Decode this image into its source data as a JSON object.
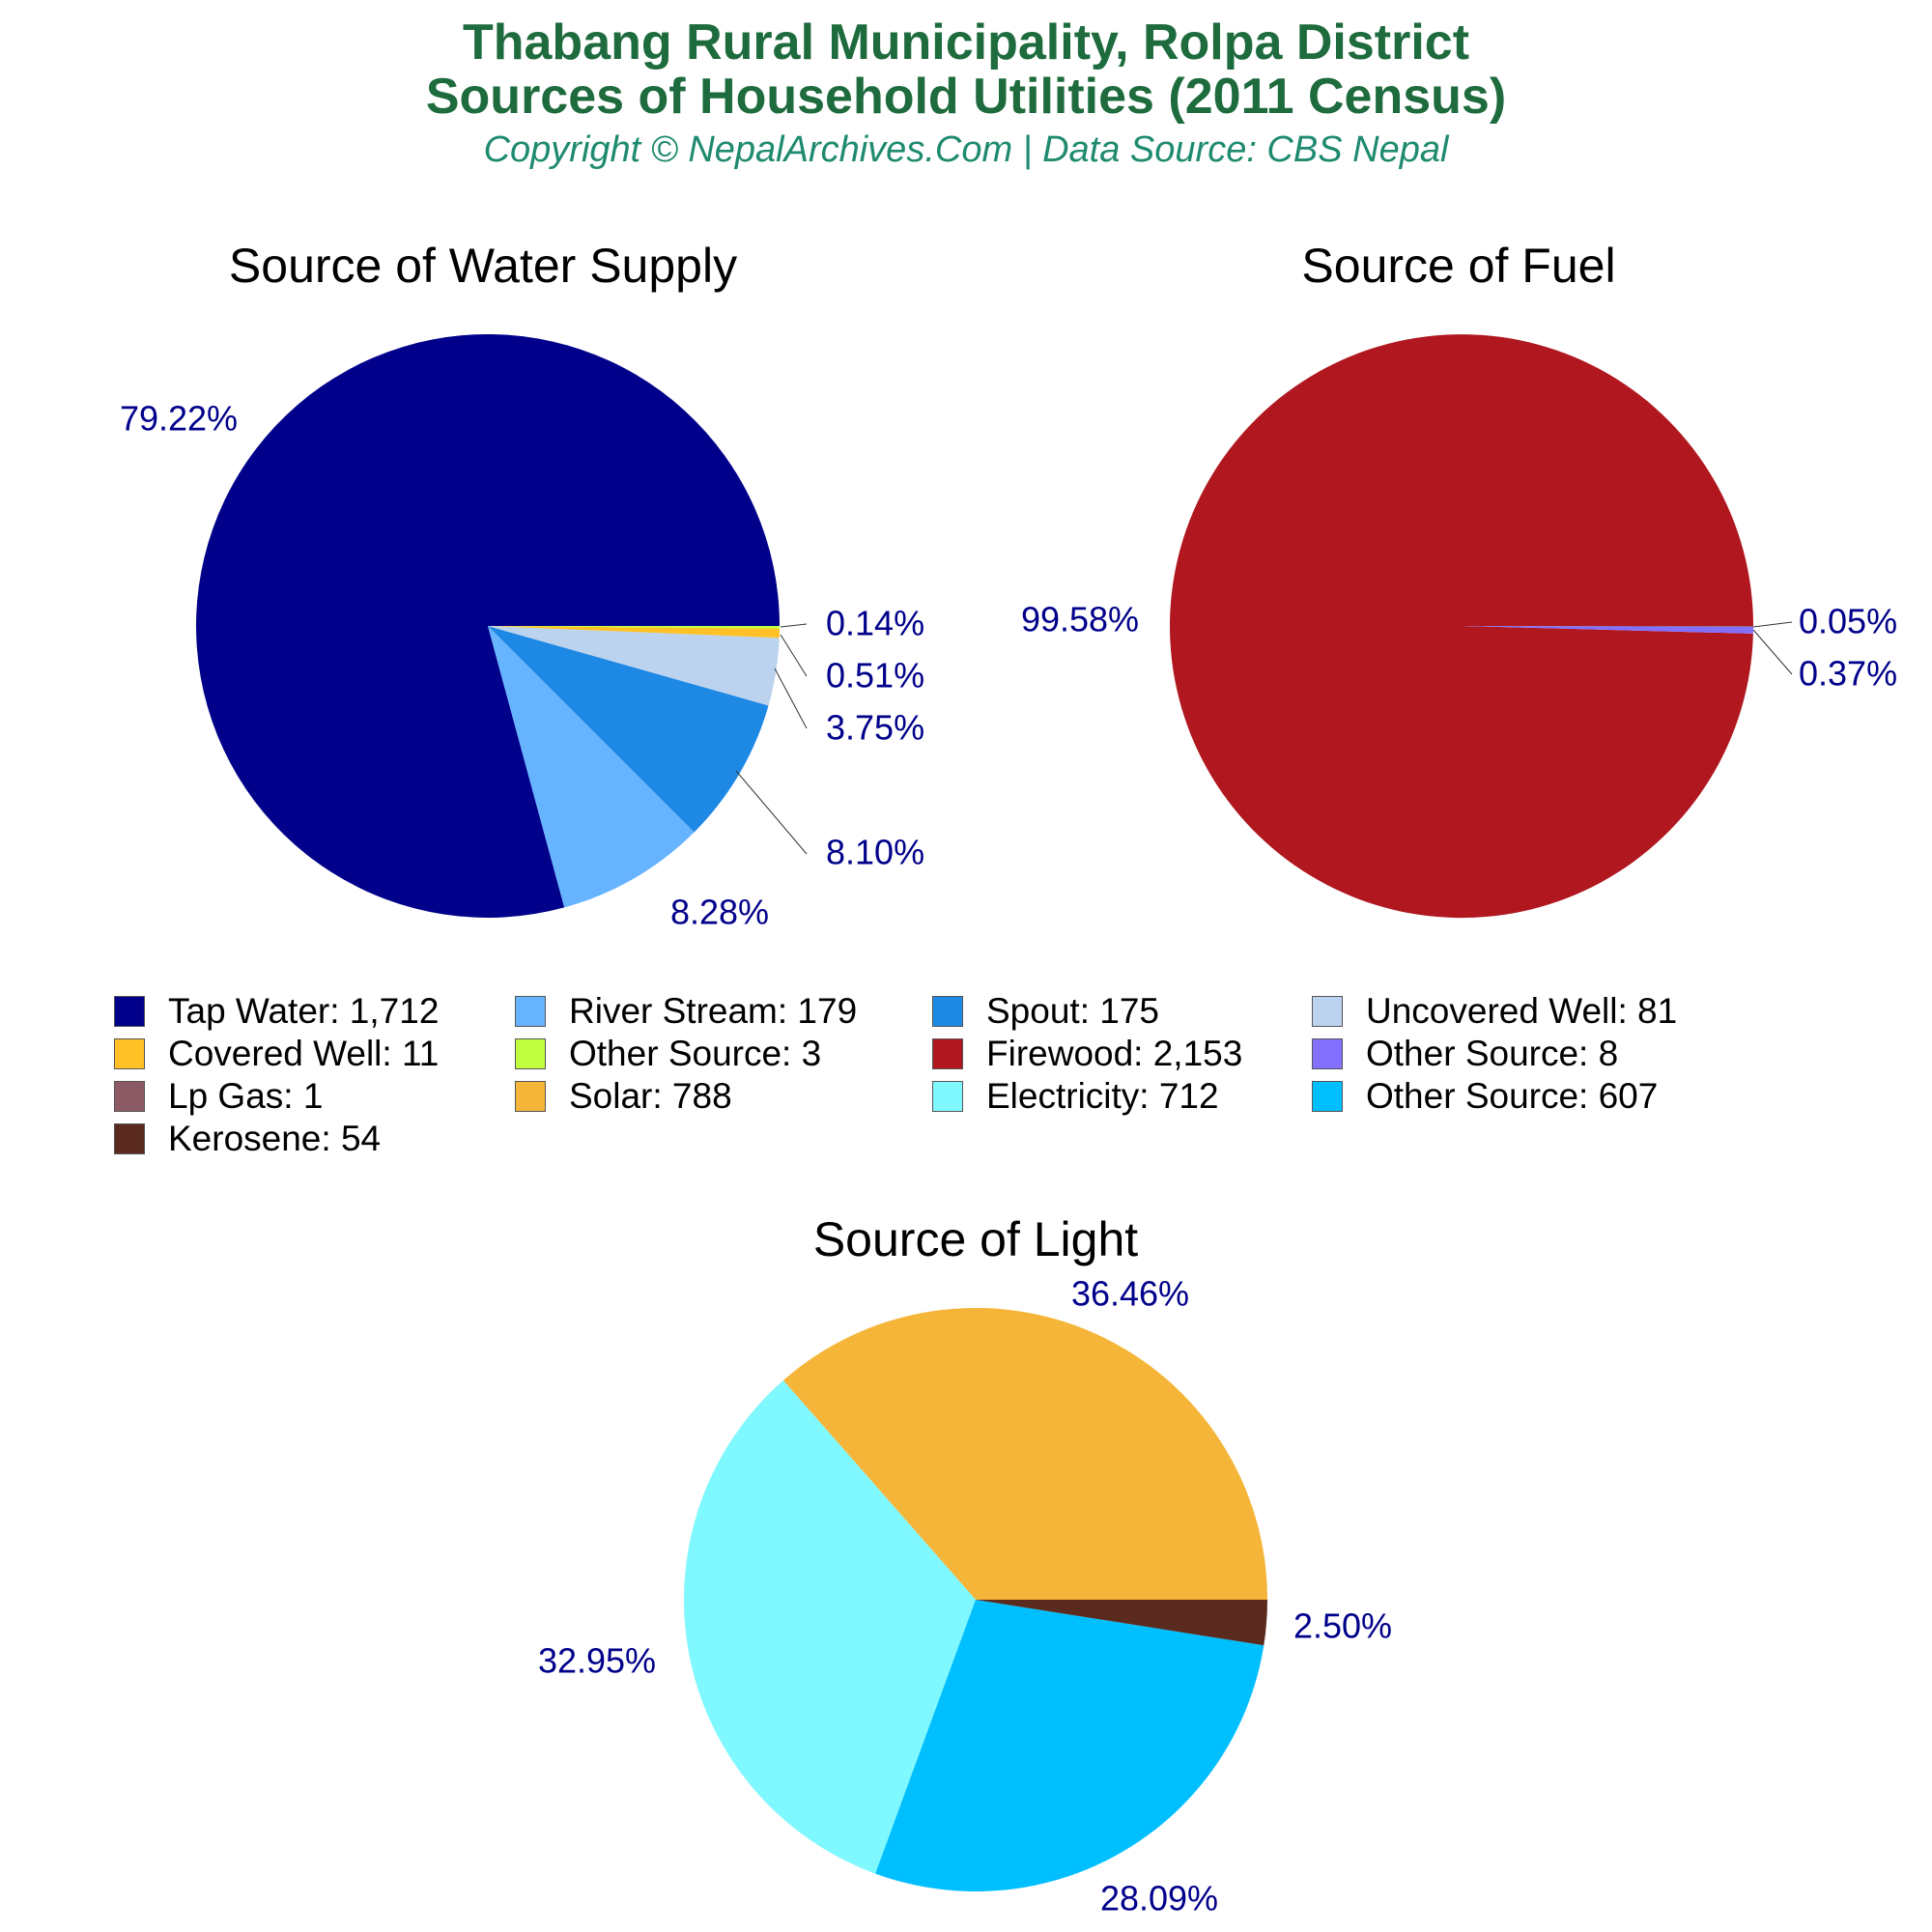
{
  "header": {
    "title_line1": "Thabang Rural Municipality, Rolpa District",
    "title_line2": "Sources of Household Utilities (2011 Census)",
    "subtitle": "Copyright © NepalArchives.Com | Data Source: CBS Nepal"
  },
  "colors": {
    "title": "#1e6b3e",
    "subtitle": "#1e8a6e",
    "pct_label": "#00008b",
    "leader_line": "#333333"
  },
  "chart_data": [
    {
      "type": "pie",
      "title": "Source of Water Supply",
      "slices": [
        {
          "label": "Tap Water",
          "value": 1712,
          "display": "1,712",
          "percent": "79.22%",
          "color": "#00008b"
        },
        {
          "label": "River Stream",
          "value": 179,
          "display": "179",
          "percent": "8.28%",
          "color": "#66b3ff"
        },
        {
          "label": "Spout",
          "value": 175,
          "display": "175",
          "percent": "8.10%",
          "color": "#1e88e5"
        },
        {
          "label": "Uncovered Well",
          "value": 81,
          "display": "81",
          "percent": "3.75%",
          "color": "#bbd3ee"
        },
        {
          "label": "Covered Well",
          "value": 11,
          "display": "11",
          "percent": "0.51%",
          "color": "#ffc125"
        },
        {
          "label": "Other Source",
          "value": 3,
          "display": "3",
          "percent": "0.14%",
          "color": "#bfff3f"
        }
      ]
    },
    {
      "type": "pie",
      "title": "Source of Fuel",
      "slices": [
        {
          "label": "Firewood",
          "value": 2153,
          "display": "2,153",
          "percent": "99.58%",
          "color": "#b0171f"
        },
        {
          "label": "Other Source",
          "value": 8,
          "display": "8",
          "percent": "0.37%",
          "color": "#8470ff"
        },
        {
          "label": "Lp Gas",
          "value": 1,
          "display": "1",
          "percent": "0.05%",
          "color": "#8b5a64"
        }
      ]
    },
    {
      "type": "pie",
      "title": "Source of Light",
      "slices": [
        {
          "label": "Solar",
          "value": 788,
          "display": "788",
          "percent": "36.46%",
          "color": "#f5b538"
        },
        {
          "label": "Electricity",
          "value": 712,
          "display": "712",
          "percent": "32.95%",
          "color": "#80f8ff"
        },
        {
          "label": "Other Source",
          "value": 607,
          "display": "607",
          "percent": "28.09%",
          "color": "#00bfff"
        },
        {
          "label": "Kerosene",
          "value": 54,
          "display": "54",
          "percent": "2.50%",
          "color": "#5a2a1e"
        }
      ]
    }
  ],
  "legend": [
    {
      "label": "Tap Water: 1,712",
      "color": "#00008b"
    },
    {
      "label": "River Stream: 179",
      "color": "#66b3ff"
    },
    {
      "label": "Spout: 175",
      "color": "#1e88e5"
    },
    {
      "label": "Uncovered Well: 81",
      "color": "#bbd3ee"
    },
    {
      "label": "Covered Well: 11",
      "color": "#ffc125"
    },
    {
      "label": "Other Source: 3",
      "color": "#bfff3f"
    },
    {
      "label": "Firewood: 2,153",
      "color": "#b0171f"
    },
    {
      "label": "Other Source: 8",
      "color": "#8470ff"
    },
    {
      "label": "Lp Gas: 1",
      "color": "#8b5a64"
    },
    {
      "label": "Solar: 788",
      "color": "#f5b538"
    },
    {
      "label": "Electricity: 712",
      "color": "#80f8ff"
    },
    {
      "label": "Other Source: 607",
      "color": "#00bfff"
    },
    {
      "label": "Kerosene: 54",
      "color": "#5a2a1e"
    }
  ]
}
